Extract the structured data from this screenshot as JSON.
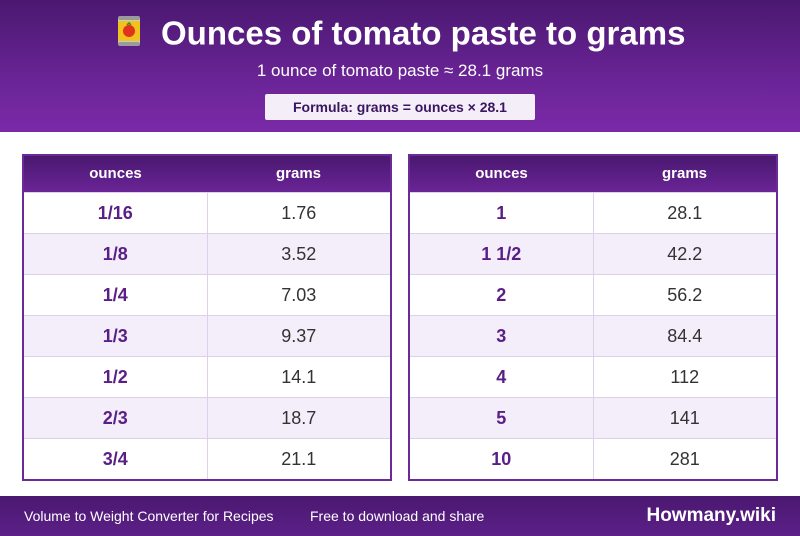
{
  "header": {
    "title": "Ounces of tomato paste to grams",
    "icon": "tomato-can-icon",
    "subtitle": "1 ounce of tomato paste ≈ 28.1 grams",
    "formula": "Formula: grams = ounces × 28.1"
  },
  "tables": [
    {
      "headers": [
        "ounces",
        "grams"
      ],
      "rows": [
        [
          "1/16",
          "1.76"
        ],
        [
          "1/8",
          "3.52"
        ],
        [
          "1/4",
          "7.03"
        ],
        [
          "1/3",
          "9.37"
        ],
        [
          "1/2",
          "14.1"
        ],
        [
          "2/3",
          "18.7"
        ],
        [
          "3/4",
          "21.1"
        ]
      ]
    },
    {
      "headers": [
        "ounces",
        "grams"
      ],
      "rows": [
        [
          "1",
          "28.1"
        ],
        [
          "1 1/2",
          "42.2"
        ],
        [
          "2",
          "56.2"
        ],
        [
          "3",
          "84.4"
        ],
        [
          "4",
          "112"
        ],
        [
          "5",
          "141"
        ],
        [
          "10",
          "281"
        ]
      ]
    }
  ],
  "footer": {
    "left_text": "Volume to Weight Converter for Recipes",
    "middle_text": "Free to download and share",
    "brand": "Howmany.wiki"
  },
  "colors": {
    "accent": "#6a2496",
    "header_dark": "#4a1870",
    "alt_row": "#f3eef9"
  }
}
